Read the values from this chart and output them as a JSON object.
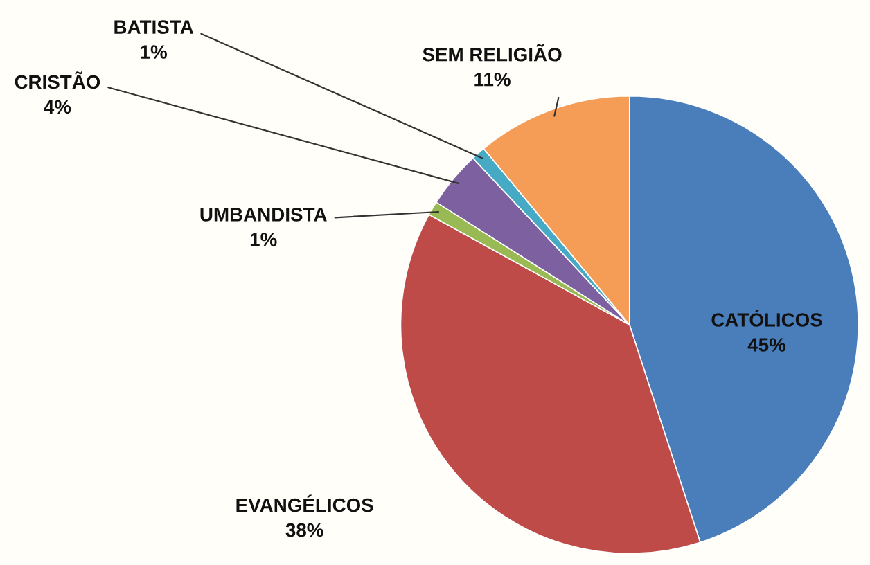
{
  "chart_data": {
    "type": "pie",
    "categories": [
      "CATÓLICOS",
      "EVANGÉLICOS",
      "UMBANDISTA",
      "CRISTÃO",
      "BATISTA",
      "SEM RELIGIÃO"
    ],
    "values": [
      45,
      38,
      1,
      4,
      1,
      11
    ],
    "value_labels": [
      "45%",
      "38%",
      "1%",
      "4%",
      "1%",
      "11%"
    ],
    "colors": [
      "#4a7ebb",
      "#be4b48",
      "#98b954",
      "#7d60a0",
      "#46aac5",
      "#f59d56"
    ],
    "legend": false
  }
}
